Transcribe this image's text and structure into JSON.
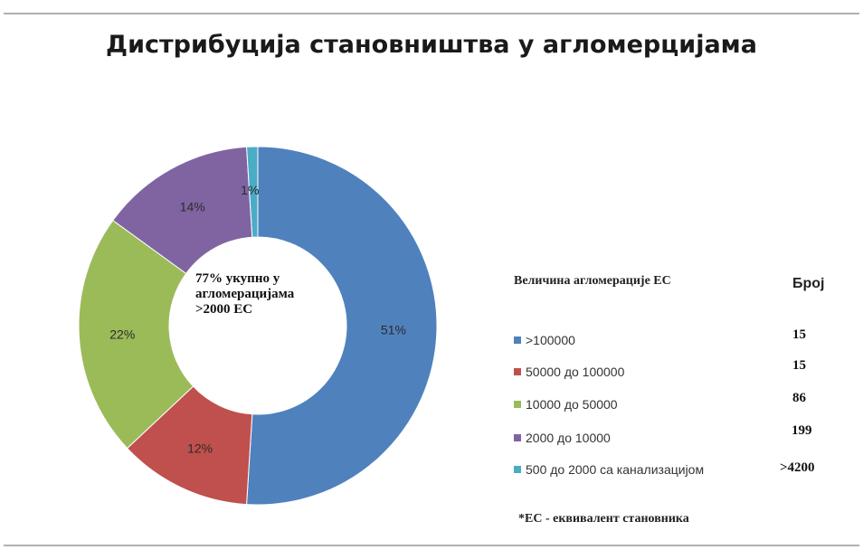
{
  "chart_data": {
    "type": "pie",
    "title": "Дистрибуција становништва у агломерцијама",
    "center_text": [
      "77% укупно у",
      "агломерацијама",
      ">2000 ЕС"
    ],
    "categories": [
      ">100000",
      "50000 до 100000",
      "10000 до 50000",
      "2000 до 10000",
      "500 до 2000 са канализацијом"
    ],
    "values": [
      51,
      12,
      22,
      14,
      1
    ],
    "value_labels": [
      "51%",
      "12%",
      "22%",
      "14%",
      "1%"
    ],
    "colors": [
      "#4f81bd",
      "#c0504d",
      "#9bbb59",
      "#8064a2",
      "#4bacc6"
    ],
    "counts": [
      "15",
      "15",
      "86",
      "199",
      ">4200"
    ],
    "legend_header": "Величина агломерације ЕС",
    "count_header": "Број",
    "legend_position": "right",
    "footnote": "*ЕС - еквивалент становника"
  }
}
